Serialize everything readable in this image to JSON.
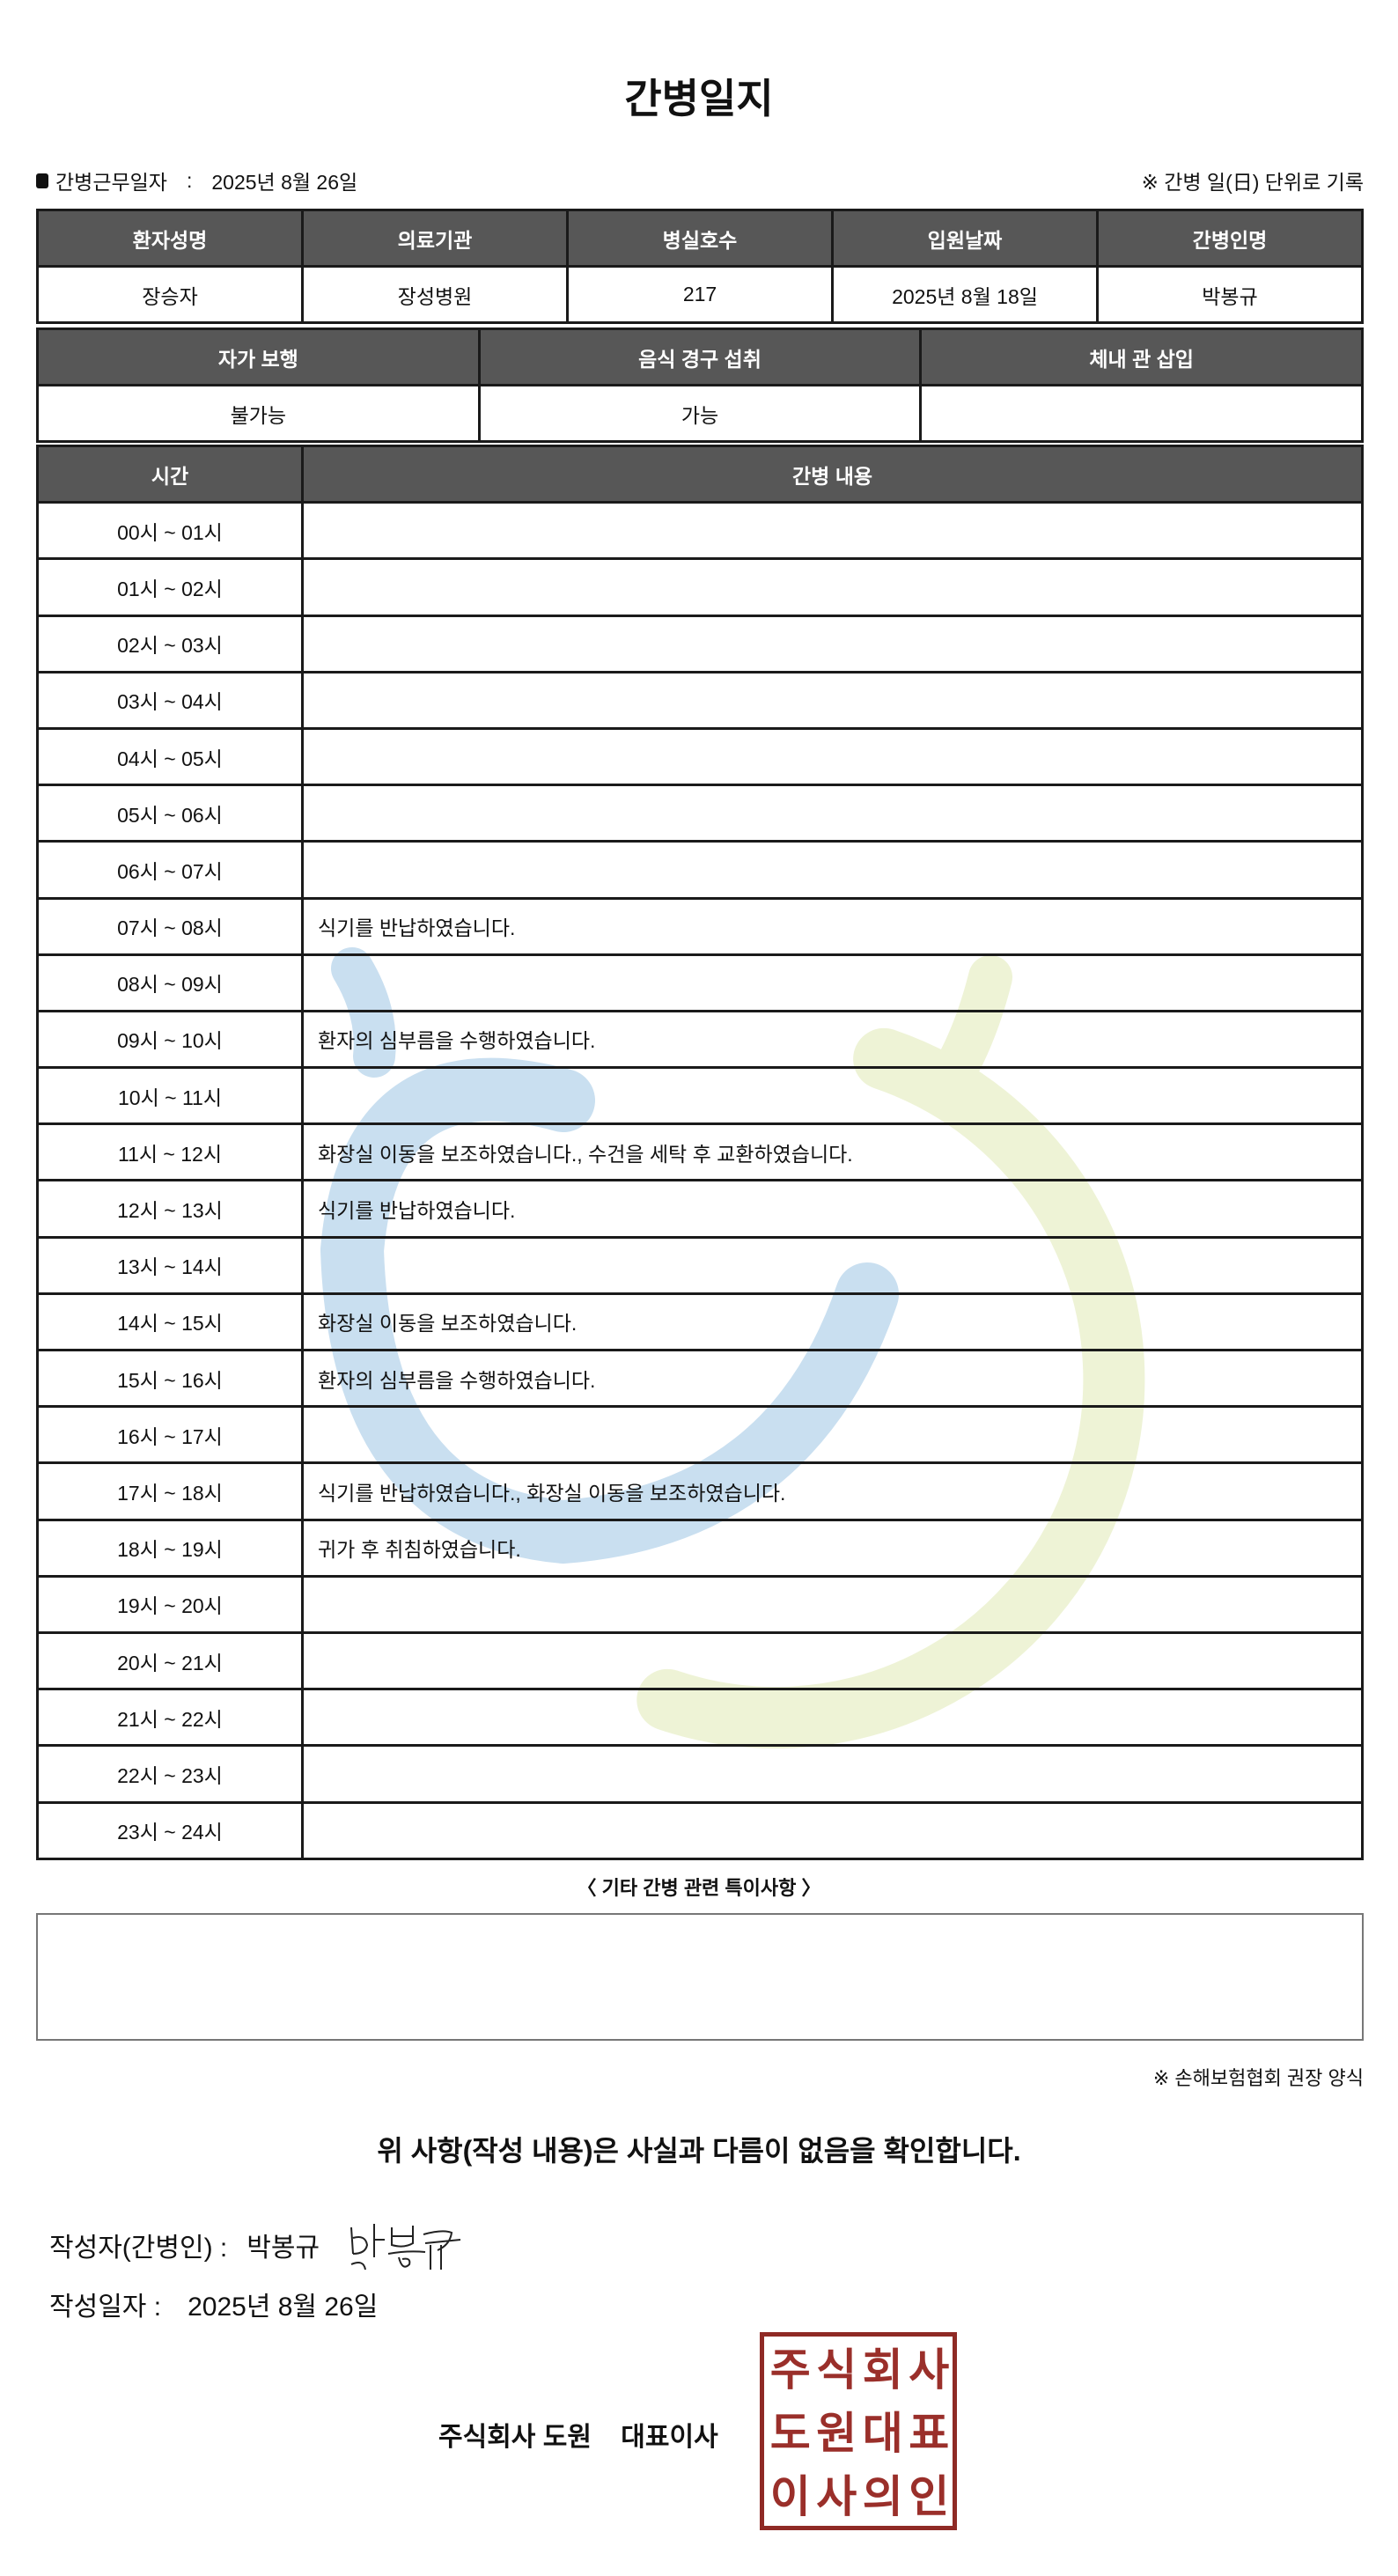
{
  "title": "간병일지",
  "work_date_label": "간병근무일자",
  "work_date": "2025년 8월 26일",
  "unit_note": "※ 간병 일(日) 단위로 기록",
  "info_table": {
    "headers": [
      "환자성명",
      "의료기관",
      "병실호수",
      "입원날짜",
      "간병인명"
    ],
    "values": [
      "장승자",
      "장성병원",
      "217",
      "2025년 8월 18일",
      "박봉규"
    ]
  },
  "status_table": {
    "headers": [
      "자가 보행",
      "음식 경구 섭취",
      "체내 관 삽입"
    ],
    "values": [
      "불가능",
      "가능",
      ""
    ]
  },
  "log_table": {
    "headers": [
      "시간",
      "간병 내용"
    ],
    "rows": [
      {
        "time": "00시 ~ 01시",
        "content": ""
      },
      {
        "time": "01시 ~ 02시",
        "content": ""
      },
      {
        "time": "02시 ~ 03시",
        "content": ""
      },
      {
        "time": "03시 ~ 04시",
        "content": ""
      },
      {
        "time": "04시 ~ 05시",
        "content": ""
      },
      {
        "time": "05시 ~ 06시",
        "content": ""
      },
      {
        "time": "06시 ~ 07시",
        "content": ""
      },
      {
        "time": "07시 ~ 08시",
        "content": "식기를 반납하였습니다."
      },
      {
        "time": "08시 ~ 09시",
        "content": ""
      },
      {
        "time": "09시 ~ 10시",
        "content": "환자의 심부름을 수행하였습니다."
      },
      {
        "time": "10시 ~ 11시",
        "content": ""
      },
      {
        "time": "11시 ~ 12시",
        "content": "화장실 이동을 보조하였습니다., 수건을 세탁 후 교환하였습니다."
      },
      {
        "time": "12시 ~ 13시",
        "content": "식기를 반납하였습니다."
      },
      {
        "time": "13시 ~ 14시",
        "content": ""
      },
      {
        "time": "14시 ~ 15시",
        "content": "화장실 이동을 보조하였습니다."
      },
      {
        "time": "15시 ~ 16시",
        "content": "환자의 심부름을 수행하였습니다."
      },
      {
        "time": "16시 ~ 17시",
        "content": ""
      },
      {
        "time": "17시 ~ 18시",
        "content": "식기를 반납하였습니다., 화장실 이동을 보조하였습니다."
      },
      {
        "time": "18시 ~ 19시",
        "content": "귀가 후 취침하였습니다."
      },
      {
        "time": "19시 ~ 20시",
        "content": ""
      },
      {
        "time": "20시 ~ 21시",
        "content": ""
      },
      {
        "time": "21시 ~ 22시",
        "content": ""
      },
      {
        "time": "22시 ~ 23시",
        "content": ""
      },
      {
        "time": "23시 ~ 24시",
        "content": ""
      }
    ]
  },
  "etc_label": "〈 기타 간병 관련 특이사항 〉",
  "etc_content": "",
  "association_note": "※ 손해보험협회 권장 양식",
  "confirm_text": "위 사항(작성 내용)은 사실과 다름이 없음을 확인합니다.",
  "writer_label": "작성자(간병인) :",
  "writer_name": "박봉규",
  "signature_text": "박봉규",
  "write_date_label": "작성일자 :",
  "write_date": "2025년 8월 26일",
  "company_line": "주식회사 도원    대표이사",
  "stamp_text": "주식회사도원대표이사의인",
  "colors": {
    "header_bg": "#575757",
    "stamp": "#9a2f2a",
    "watermark_blue": "#c9dff0",
    "watermark_green": "#eef3d6"
  }
}
